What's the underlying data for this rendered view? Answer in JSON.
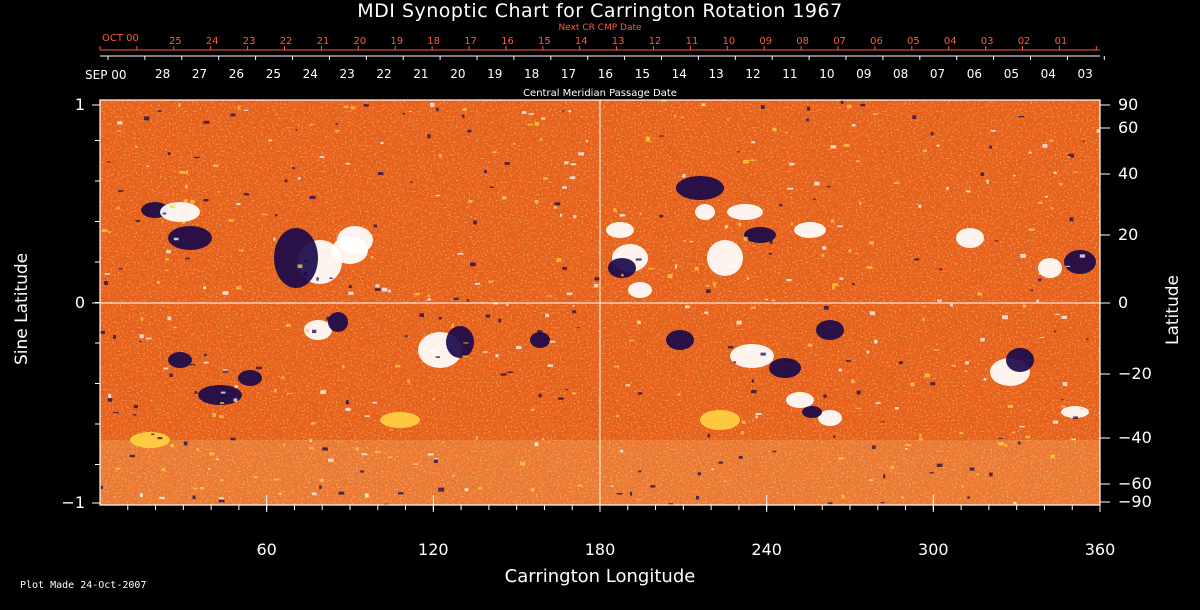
{
  "title": "MDI Synoptic Chart for Carrington Rotation 1967",
  "next_cr_label": "Next CR CMP Date",
  "cmp_label": "Central Meridian Passage Date",
  "top_month_red": "OCT 00",
  "top_month_white": "SEP 00",
  "top_dates_red": [
    "25",
    "24",
    "23",
    "22",
    "21",
    "20",
    "19",
    "18",
    "17",
    "16",
    "15",
    "14",
    "13",
    "12",
    "11",
    "10",
    "09",
    "08",
    "07",
    "06",
    "05",
    "04",
    "03",
    "02",
    "01"
  ],
  "top_dates_white": [
    "28",
    "27",
    "26",
    "25",
    "24",
    "23",
    "22",
    "21",
    "20",
    "19",
    "18",
    "17",
    "16",
    "15",
    "14",
    "13",
    "12",
    "11",
    "10",
    "09",
    "08",
    "07",
    "06",
    "05",
    "04",
    "03"
  ],
  "left_axis_label": "Sine Latitude",
  "right_axis_label": "Latitude",
  "x_axis_label": "Carrington Longitude",
  "footer": "Plot Made 24-Oct-2007",
  "x_ticks": [
    "60",
    "120",
    "180",
    "240",
    "300",
    "360"
  ],
  "left_ticks": [
    "1",
    "0",
    "−1"
  ],
  "right_ticks": [
    "90",
    "60",
    "40",
    "20",
    "0",
    "−20",
    "−40",
    "−60",
    "−90"
  ],
  "map": {
    "colors": {
      "background": "#e8601a",
      "dark": "#8a2a08",
      "positive": "#ffffff",
      "negative": "#1a0a4a",
      "yellow": "#ffd040"
    },
    "lon_range": [
      0,
      360
    ],
    "sinlat_range": [
      -1,
      1
    ]
  }
}
